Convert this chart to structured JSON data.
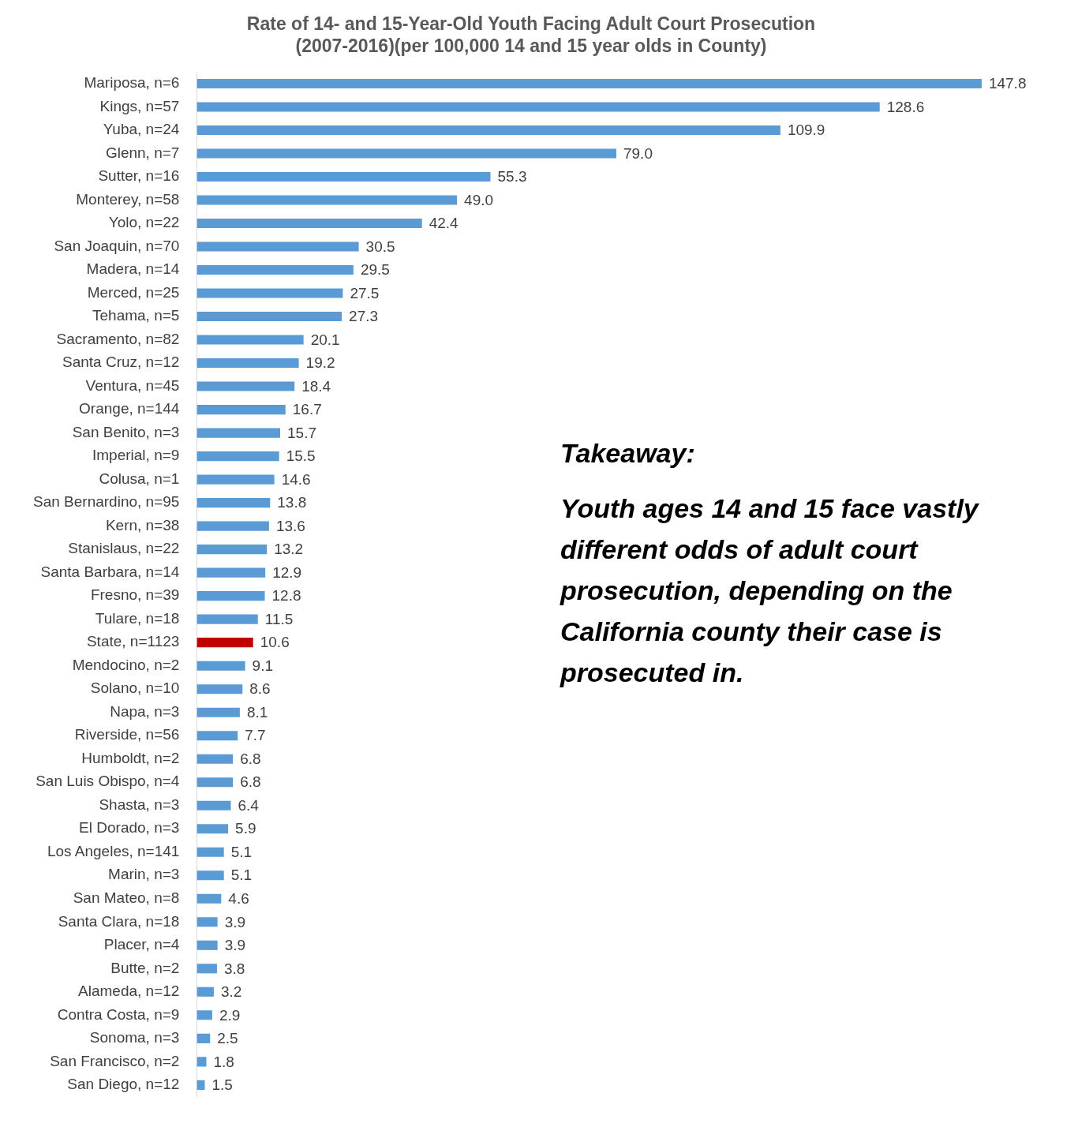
{
  "chart_data": {
    "type": "bar",
    "orientation": "horizontal",
    "title": "Rate of 14- and 15-Year-Old Youth Facing Adult Court Prosecution\n(2007-2016)(per 100,000 14 and 15 year olds in County)",
    "categories": [
      "Mariposa, n=6",
      "Kings, n=57",
      "Yuba, n=24",
      "Glenn, n=7",
      "Sutter, n=16",
      "Monterey, n=58",
      "Yolo, n=22",
      "San Joaquin, n=70",
      "Madera, n=14",
      "Merced, n=25",
      "Tehama, n=5",
      "Sacramento, n=82",
      "Santa Cruz, n=12",
      "Ventura, n=45",
      "Orange, n=144",
      "San Benito, n=3",
      "Imperial, n=9",
      "Colusa, n=1",
      "San Bernardino, n=95",
      "Kern, n=38",
      "Stanislaus, n=22",
      "Santa Barbara, n=14",
      "Fresno, n=39",
      "Tulare, n=18",
      "State, n=1123",
      "Mendocino, n=2",
      "Solano, n=10",
      "Napa, n=3",
      "Riverside, n=56",
      "Humboldt, n=2",
      "San Luis Obispo, n=4",
      "Shasta, n=3",
      "El Dorado, n=3",
      "Los Angeles, n=141",
      "Marin, n=3",
      "San Mateo, n=8",
      "Santa Clara, n=18",
      "Placer, n=4",
      "Butte, n=2",
      "Alameda, n=12",
      "Contra Costa, n=9",
      "Sonoma, n=3",
      "San Francisco, n=2",
      "San Diego, n=12"
    ],
    "values": [
      147.8,
      128.6,
      109.9,
      79.0,
      55.3,
      49.0,
      42.4,
      30.5,
      29.5,
      27.5,
      27.3,
      20.1,
      19.2,
      18.4,
      16.7,
      15.7,
      15.5,
      14.6,
      13.8,
      13.6,
      13.2,
      12.9,
      12.8,
      11.5,
      10.6,
      9.1,
      8.6,
      8.1,
      7.7,
      6.8,
      6.8,
      6.4,
      5.9,
      5.1,
      5.1,
      4.6,
      3.9,
      3.9,
      3.8,
      3.2,
      2.9,
      2.5,
      1.8,
      1.5
    ],
    "value_labels": [
      "147.8",
      "128.6",
      "109.9",
      "79.0",
      "55.3",
      "49.0",
      "42.4",
      "30.5",
      "29.5",
      "27.5",
      "27.3",
      "20.1",
      "19.2",
      "18.4",
      "16.7",
      "15.7",
      "15.5",
      "14.6",
      "13.8",
      "13.6",
      "13.2",
      "12.9",
      "12.8",
      "11.5",
      "10.6",
      "9.1",
      "8.6",
      "8.1",
      "7.7",
      "6.8",
      "6.8",
      "6.4",
      "5.9",
      "5.1",
      "5.1",
      "4.6",
      "3.9",
      "3.9",
      "3.8",
      "3.2",
      "2.9",
      "2.5",
      "1.8",
      "1.5"
    ],
    "colors": [
      "#5b9bd5",
      "#5b9bd5",
      "#5b9bd5",
      "#5b9bd5",
      "#5b9bd5",
      "#5b9bd5",
      "#5b9bd5",
      "#5b9bd5",
      "#5b9bd5",
      "#5b9bd5",
      "#5b9bd5",
      "#5b9bd5",
      "#5b9bd5",
      "#5b9bd5",
      "#5b9bd5",
      "#5b9bd5",
      "#5b9bd5",
      "#5b9bd5",
      "#5b9bd5",
      "#5b9bd5",
      "#5b9bd5",
      "#5b9bd5",
      "#5b9bd5",
      "#5b9bd5",
      "#c00000",
      "#5b9bd5",
      "#5b9bd5",
      "#5b9bd5",
      "#5b9bd5",
      "#5b9bd5",
      "#5b9bd5",
      "#5b9bd5",
      "#5b9bd5",
      "#5b9bd5",
      "#5b9bd5",
      "#5b9bd5",
      "#5b9bd5",
      "#5b9bd5",
      "#5b9bd5",
      "#5b9bd5",
      "#5b9bd5",
      "#5b9bd5",
      "#5b9bd5",
      "#5b9bd5"
    ],
    "legend": false,
    "annotations": [
      "Takeaway:",
      "Youth ages 14 and 15 face vastly different odds of adult court prosecution, depending on the California county their case is prosecuted in."
    ]
  }
}
